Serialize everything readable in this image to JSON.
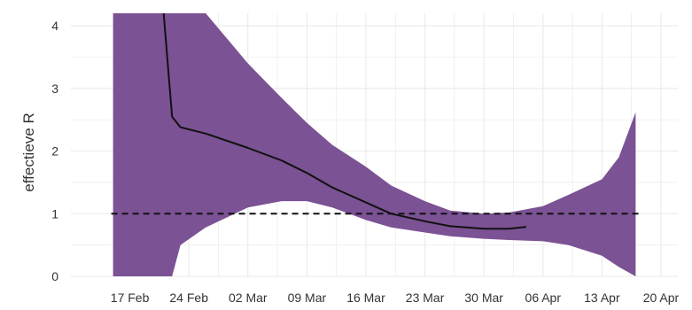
{
  "chart_data": {
    "type": "line",
    "title": "",
    "xlabel": "",
    "ylabel": "effectieve R",
    "x_ticks": [
      "17 Feb",
      "24 Feb",
      "02 Mar",
      "09 Mar",
      "16 Mar",
      "23 Mar",
      "30 Mar",
      "06 Apr",
      "13 Apr",
      "20 Apr"
    ],
    "y_ticks": [
      "0",
      "1",
      "2",
      "3",
      "4"
    ],
    "ylim": [
      0,
      4.2
    ],
    "xlim": [
      "2020-02-10",
      "2020-04-22"
    ],
    "grid": true,
    "colors": {
      "band": "#7b5294",
      "line": "#111111",
      "reference": "#111111",
      "grid": "#e8e8e8"
    },
    "reference_line": {
      "y": 1,
      "style": "dashed"
    },
    "band": {
      "x": [
        "2020-02-15",
        "2020-02-22",
        "2020-02-23",
        "2020-02-26",
        "2020-03-02",
        "2020-03-06",
        "2020-03-09",
        "2020-03-12",
        "2020-03-16",
        "2020-03-19",
        "2020-03-23",
        "2020-03-26",
        "2020-03-30",
        "2020-04-02",
        "2020-04-06",
        "2020-04-09",
        "2020-04-13",
        "2020-04-15",
        "2020-04-17"
      ],
      "upper": [
        4.2,
        4.2,
        4.2,
        4.2,
        3.4,
        2.85,
        2.45,
        2.1,
        1.75,
        1.45,
        1.2,
        1.05,
        1.0,
        1.02,
        1.12,
        1.3,
        1.55,
        1.9,
        2.62
      ],
      "lower": [
        0,
        0,
        0.5,
        0.78,
        1.1,
        1.2,
        1.2,
        1.1,
        0.9,
        0.78,
        0.7,
        0.64,
        0.6,
        0.58,
        0.56,
        0.5,
        0.33,
        0.15,
        0
      ]
    },
    "series": [
      {
        "x": [
          "2020-02-21",
          "2020-02-22",
          "2020-02-23",
          "2020-02-26",
          "2020-03-02",
          "2020-03-06",
          "2020-03-09",
          "2020-03-12",
          "2020-03-16",
          "2020-03-19",
          "2020-03-23",
          "2020-03-26",
          "2020-03-30",
          "2020-04-02",
          "2020-04-04"
        ],
        "values": [
          4.2,
          2.55,
          2.38,
          2.28,
          2.05,
          1.85,
          1.65,
          1.42,
          1.18,
          1.0,
          0.88,
          0.8,
          0.76,
          0.76,
          0.79
        ]
      }
    ]
  }
}
